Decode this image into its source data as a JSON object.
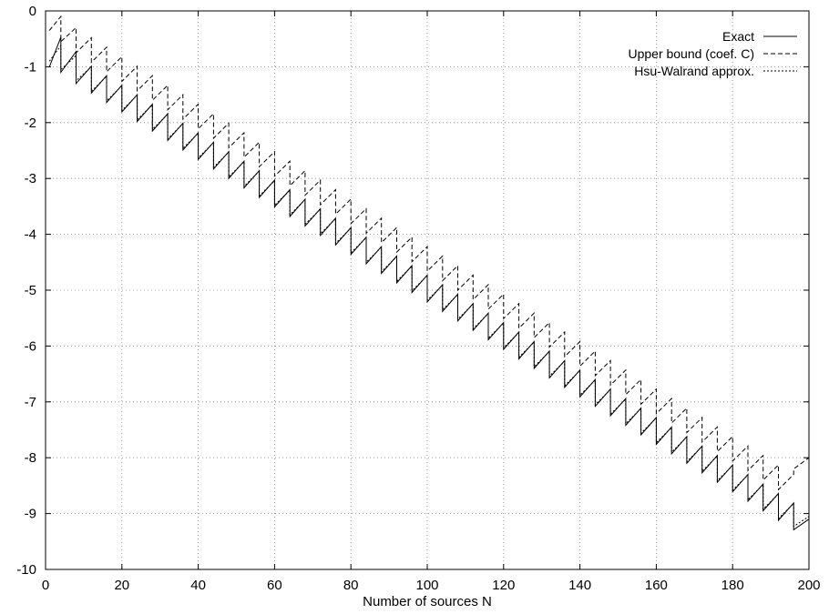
{
  "chart_data": {
    "type": "line",
    "title": "",
    "xlabel": "Number of sources N",
    "ylabel": "",
    "xlim": [
      0,
      200
    ],
    "ylim": [
      -10,
      0
    ],
    "xticks": [
      0,
      20,
      40,
      60,
      80,
      100,
      120,
      140,
      160,
      180,
      200
    ],
    "yticks": [
      0,
      -1,
      -2,
      -3,
      -4,
      -5,
      -6,
      -7,
      -8,
      -9,
      -10
    ],
    "xtick_labels": [
      "0",
      "20",
      "40",
      "60",
      "80",
      "100",
      "120",
      "140",
      "160",
      "180",
      "200"
    ],
    "ytick_labels": [
      "0",
      "-1",
      "-2",
      "-3",
      "-4",
      "-5",
      "-6",
      "-7",
      "-8",
      "-9",
      "-10"
    ],
    "grid": true,
    "legend_position": "top-right",
    "series": [
      {
        "name": "Exact",
        "style": "solid",
        "color": "#000000",
        "x": [
          1,
          4,
          4,
          8,
          8,
          12,
          12,
          16,
          16,
          20,
          20,
          24,
          24,
          28,
          28,
          32,
          32,
          36,
          36,
          40,
          40,
          44,
          44,
          48,
          48,
          52,
          52,
          56,
          56,
          60,
          60,
          64,
          64,
          68,
          68,
          72,
          72,
          76,
          76,
          80,
          80,
          84,
          84,
          88,
          88,
          92,
          92,
          96,
          96,
          100,
          100,
          104,
          104,
          108,
          108,
          112,
          112,
          116,
          116,
          120,
          120,
          124,
          124,
          128,
          128,
          132,
          132,
          136,
          136,
          140,
          140,
          144,
          144,
          148,
          148,
          152,
          152,
          156,
          156,
          160,
          160,
          164,
          164,
          168,
          168,
          172,
          172,
          176,
          176,
          180,
          180,
          184,
          184,
          188,
          188,
          192,
          192,
          196,
          196,
          200
        ],
        "y": [
          -1.0,
          -0.47,
          -1.1,
          -0.73,
          -1.3,
          -0.99,
          -1.47,
          -1.16,
          -1.64,
          -1.33,
          -1.81,
          -1.5,
          -1.98,
          -1.67,
          -2.15,
          -1.84,
          -2.32,
          -2.01,
          -2.49,
          -2.18,
          -2.66,
          -2.35,
          -2.83,
          -2.52,
          -3.0,
          -2.69,
          -3.17,
          -2.86,
          -3.34,
          -3.03,
          -3.51,
          -3.2,
          -3.68,
          -3.37,
          -3.85,
          -3.54,
          -4.02,
          -3.71,
          -4.19,
          -3.88,
          -4.36,
          -4.05,
          -4.53,
          -4.22,
          -4.7,
          -4.39,
          -4.87,
          -4.56,
          -5.04,
          -4.73,
          -5.21,
          -4.9,
          -5.38,
          -5.07,
          -5.55,
          -5.24,
          -5.72,
          -5.41,
          -5.89,
          -5.58,
          -6.06,
          -5.75,
          -6.23,
          -5.92,
          -6.4,
          -6.09,
          -6.57,
          -6.26,
          -6.74,
          -6.43,
          -6.91,
          -6.6,
          -7.08,
          -6.77,
          -7.25,
          -6.94,
          -7.42,
          -7.11,
          -7.59,
          -7.28,
          -7.76,
          -7.45,
          -7.93,
          -7.62,
          -8.1,
          -7.79,
          -8.27,
          -7.96,
          -8.44,
          -8.13,
          -8.61,
          -8.3,
          -8.78,
          -8.47,
          -8.95,
          -8.64,
          -9.12,
          -8.81,
          -9.29,
          -9.1
        ]
      },
      {
        "name": "Upper bound (coef. C)",
        "style": "dashed",
        "color": "#000000",
        "x": [
          1,
          4,
          4,
          8,
          8,
          12,
          12,
          16,
          16,
          20,
          20,
          24,
          24,
          28,
          28,
          32,
          32,
          36,
          36,
          40,
          40,
          44,
          44,
          48,
          48,
          52,
          52,
          56,
          56,
          60,
          60,
          64,
          64,
          68,
          68,
          72,
          72,
          76,
          76,
          80,
          80,
          84,
          84,
          88,
          88,
          92,
          92,
          96,
          96,
          100,
          100,
          104,
          104,
          108,
          108,
          112,
          112,
          116,
          116,
          120,
          120,
          124,
          124,
          128,
          128,
          132,
          132,
          136,
          136,
          140,
          140,
          144,
          144,
          148,
          148,
          152,
          152,
          156,
          156,
          160,
          160,
          164,
          164,
          168,
          168,
          172,
          172,
          176,
          176,
          180,
          180,
          184,
          184,
          188,
          188,
          192,
          192,
          196,
          196,
          200
        ],
        "y": [
          -0.35,
          -0.1,
          -0.55,
          -0.3,
          -0.75,
          -0.48,
          -0.92,
          -0.65,
          -1.09,
          -0.82,
          -1.26,
          -0.99,
          -1.43,
          -1.16,
          -1.6,
          -1.33,
          -1.77,
          -1.5,
          -1.94,
          -1.67,
          -2.11,
          -1.84,
          -2.28,
          -2.01,
          -2.45,
          -2.18,
          -2.62,
          -2.35,
          -2.79,
          -2.52,
          -2.96,
          -2.69,
          -3.13,
          -2.86,
          -3.3,
          -3.03,
          -3.47,
          -3.2,
          -3.64,
          -3.37,
          -3.81,
          -3.54,
          -3.98,
          -3.71,
          -4.15,
          -3.88,
          -4.32,
          -4.05,
          -4.49,
          -4.22,
          -4.66,
          -4.39,
          -4.83,
          -4.56,
          -5.0,
          -4.73,
          -5.17,
          -4.9,
          -5.34,
          -5.07,
          -5.51,
          -5.24,
          -5.68,
          -5.41,
          -5.85,
          -5.58,
          -6.02,
          -5.75,
          -6.19,
          -5.92,
          -6.36,
          -6.09,
          -6.53,
          -6.26,
          -6.7,
          -6.43,
          -6.87,
          -6.6,
          -7.04,
          -6.77,
          -7.21,
          -6.94,
          -7.38,
          -7.11,
          -7.55,
          -7.28,
          -7.72,
          -7.45,
          -7.89,
          -7.62,
          -8.06,
          -7.79,
          -8.23,
          -7.96,
          -8.4,
          -8.13,
          -8.57,
          -8.3,
          -8.2,
          -8.0
        ]
      },
      {
        "name": "Hsu-Walrand approx.",
        "style": "dotted",
        "color": "#000000",
        "x": [
          1,
          4,
          4,
          8,
          8,
          12,
          12,
          16,
          16,
          20,
          20,
          24,
          24,
          28,
          28,
          32,
          32,
          36,
          36,
          40,
          40,
          44,
          44,
          48,
          48,
          52,
          52,
          56,
          56,
          60,
          60,
          64,
          64,
          68,
          68,
          72,
          72,
          76,
          76,
          80,
          80,
          84,
          84,
          88,
          88,
          92,
          92,
          96,
          96,
          100,
          100,
          104,
          104,
          108,
          108,
          112,
          112,
          116,
          116,
          120,
          120,
          124,
          124,
          128,
          128,
          132,
          132,
          136,
          136,
          140,
          140,
          144,
          144,
          148,
          148,
          152,
          152,
          156,
          156,
          160,
          160,
          164,
          164,
          168,
          168,
          172,
          172,
          176,
          176,
          180,
          180,
          184,
          184,
          188,
          188,
          192,
          192,
          196,
          196,
          200
        ],
        "y": [
          -0.9,
          -0.62,
          -1.05,
          -0.8,
          -1.25,
          -1.0,
          -1.44,
          -1.17,
          -1.61,
          -1.34,
          -1.78,
          -1.51,
          -1.95,
          -1.68,
          -2.12,
          -1.85,
          -2.29,
          -2.02,
          -2.46,
          -2.19,
          -2.63,
          -2.36,
          -2.8,
          -2.53,
          -2.97,
          -2.7,
          -3.14,
          -2.87,
          -3.31,
          -3.04,
          -3.48,
          -3.21,
          -3.65,
          -3.38,
          -3.82,
          -3.55,
          -3.99,
          -3.72,
          -4.16,
          -3.89,
          -4.33,
          -4.06,
          -4.5,
          -4.23,
          -4.67,
          -4.4,
          -4.84,
          -4.57,
          -5.01,
          -4.74,
          -5.18,
          -4.91,
          -5.35,
          -5.08,
          -5.52,
          -5.25,
          -5.69,
          -5.42,
          -5.86,
          -5.59,
          -6.03,
          -5.76,
          -6.2,
          -5.93,
          -6.37,
          -6.1,
          -6.54,
          -6.27,
          -6.71,
          -6.44,
          -6.88,
          -6.61,
          -7.05,
          -6.78,
          -7.22,
          -6.95,
          -7.39,
          -7.12,
          -7.56,
          -7.29,
          -7.73,
          -7.46,
          -7.9,
          -7.63,
          -8.07,
          -7.8,
          -8.24,
          -7.97,
          -8.41,
          -8.14,
          -8.58,
          -8.31,
          -8.75,
          -8.48,
          -8.92,
          -8.65,
          -9.09,
          -8.82,
          -9.23,
          -9.05
        ]
      }
    ]
  }
}
